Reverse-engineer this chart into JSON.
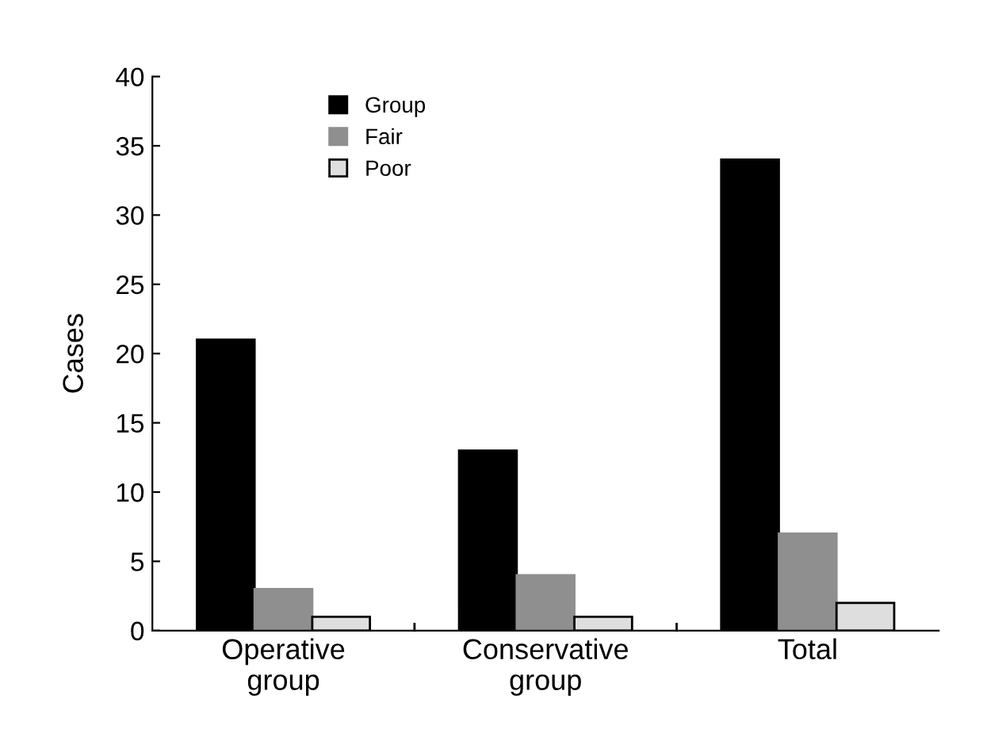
{
  "chart_data": {
    "type": "bar",
    "ylabel": "Cases",
    "categories": [
      "Operative\ngroup",
      "Conservative\ngroup",
      "Total"
    ],
    "series": [
      {
        "name": "Group",
        "color": "#000000",
        "values": [
          21,
          13,
          34
        ]
      },
      {
        "name": "Fair",
        "color": "#8f8f8f",
        "values": [
          3,
          4,
          7
        ]
      },
      {
        "name": "Poor",
        "color": "#dedede",
        "values": [
          1,
          1,
          2
        ]
      }
    ],
    "ylim": [
      0,
      40
    ],
    "yticks": [
      0,
      5,
      10,
      15,
      20,
      25,
      30,
      35,
      40
    ],
    "grid": false,
    "legend": "top left"
  }
}
